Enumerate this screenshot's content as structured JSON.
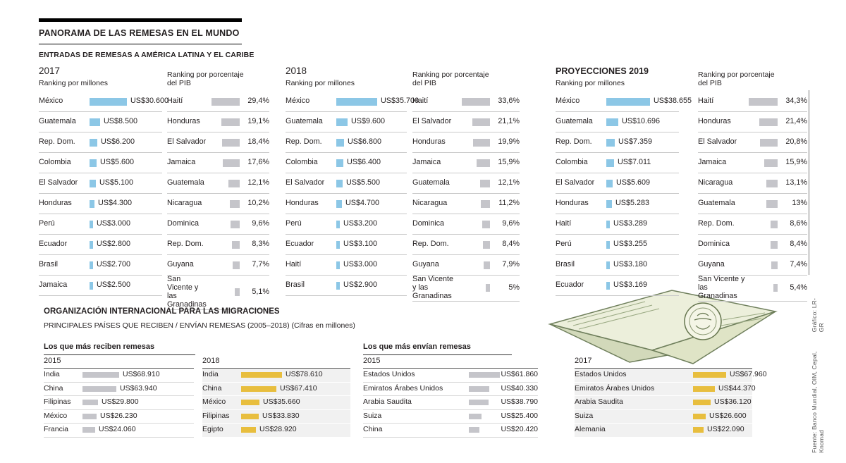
{
  "header": {
    "title": "PANORAMA DE LAS REMESAS EN EL MUNDO",
    "subtitle": "ENTRADAS DE REMESAS A AMÉRICA LATINA Y EL CARIBE"
  },
  "top": {
    "millones_label": "Ranking por millones",
    "pib_label": "Ranking por porcentaje del PIB",
    "years": [
      "2017",
      "2018",
      "PROYECCIONES 2019"
    ]
  },
  "bottom": {
    "title": "ORGANIZACIÓN INTERNACIONAL PARA LAS MIGRACIONES",
    "subtitle": "PRINCIPALES PAÍSES QUE RECIBEN / ENVÍAN REMESAS (2005–2018) (Cifras en millones)",
    "receive_title": "Los que más reciben remesas",
    "send_title": "Los que más envían remesas"
  },
  "credits": {
    "source": "Fuente: Banco Mundial, OIM, Cepal, Knomad",
    "graphic": "Gráfico: LR-GR"
  },
  "colors": {
    "blue": "#8CC7E6",
    "gray": "#C5C5CA",
    "yellow": "#E8BE3E"
  },
  "chart_data": [
    {
      "type": "bar",
      "orientation": "horizontal",
      "group": "2017",
      "title": "Ranking por millones",
      "bar_color": "#8CC7E6",
      "categories": [
        "México",
        "Guatemala",
        "Rep. Dom.",
        "Colombia",
        "El Salvador",
        "Honduras",
        "Perú",
        "Ecuador",
        "Brasil",
        "Jamaica"
      ],
      "values": [
        30600,
        8500,
        6200,
        5600,
        5100,
        4300,
        3000,
        2800,
        2700,
        2500
      ],
      "value_labels": [
        "US$30.600",
        "US$8.500",
        "US$6.200",
        "US$5.600",
        "US$5.100",
        "US$4.300",
        "US$3.000",
        "US$2.800",
        "US$2.700",
        "US$2.500"
      ]
    },
    {
      "type": "bar",
      "orientation": "horizontal",
      "group": "2017",
      "title": "Ranking por porcentaje del PIB",
      "bar_color": "#C5C5CA",
      "categories": [
        "Haití",
        "Honduras",
        "El Salvador",
        "Jamaica",
        "Guatemala",
        "Nicaragua",
        "Dominica",
        "Rep. Dom.",
        "Guyana",
        "San Vicente y las Granadinas"
      ],
      "values": [
        29.4,
        19.1,
        18.4,
        17.6,
        12.1,
        10.2,
        9.6,
        8.3,
        7.7,
        5.1
      ],
      "value_labels": [
        "29,4%",
        "19,1%",
        "18,4%",
        "17,6%",
        "12,1%",
        "10,2%",
        "9,6%",
        "8,3%",
        "7,7%",
        "5,1%"
      ]
    },
    {
      "type": "bar",
      "orientation": "horizontal",
      "group": "2018",
      "title": "Ranking por millones",
      "bar_color": "#8CC7E6",
      "categories": [
        "México",
        "Guatemala",
        "Rep. Dom.",
        "Colombia",
        "El Salvador",
        "Honduras",
        "Perú",
        "Ecuador",
        "Haití",
        "Brasil"
      ],
      "values": [
        35700,
        9600,
        6800,
        6400,
        5500,
        4700,
        3200,
        3100,
        3000,
        2900
      ],
      "value_labels": [
        "US$35.700",
        "US$9.600",
        "US$6.800",
        "US$6.400",
        "US$5.500",
        "US$4.700",
        "US$3.200",
        "US$3.100",
        "US$3.000",
        "US$2.900"
      ]
    },
    {
      "type": "bar",
      "orientation": "horizontal",
      "group": "2018",
      "title": "Ranking por porcentaje del PIB",
      "bar_color": "#C5C5CA",
      "categories": [
        "Haití",
        "El Salvador",
        "Honduras",
        "Jamaica",
        "Guatemala",
        "Nicaragua",
        "Dominica",
        "Rep. Dom.",
        "Guyana",
        "San Vicente y las Granadinas"
      ],
      "values": [
        33.6,
        21.1,
        19.9,
        15.9,
        12.1,
        11.2,
        9.6,
        8.4,
        7.9,
        5
      ],
      "value_labels": [
        "33,6%",
        "21,1%",
        "19,9%",
        "15,9%",
        "12,1%",
        "11,2%",
        "9,6%",
        "8,4%",
        "7,9%",
        "5%"
      ]
    },
    {
      "type": "bar",
      "orientation": "horizontal",
      "group": "PROYECCIONES 2019",
      "title": "Ranking por millones",
      "bar_color": "#8CC7E6",
      "categories": [
        "México",
        "Guatemala",
        "Rep. Dom.",
        "Colombia",
        "El Salvador",
        "Honduras",
        "Haití",
        "Perú",
        "Brasil",
        "Ecuador"
      ],
      "values": [
        38655,
        10696,
        7359,
        7011,
        5609,
        5283,
        3289,
        3255,
        3180,
        3169
      ],
      "value_labels": [
        "US$38.655",
        "US$10.696",
        "US$7.359",
        "US$7.011",
        "US$5.609",
        "US$5.283",
        "US$3.289",
        "US$3.255",
        "US$3.180",
        "US$3.169"
      ]
    },
    {
      "type": "bar",
      "orientation": "horizontal",
      "group": "PROYECCIONES 2019",
      "title": "Ranking por porcentaje del PIB",
      "bar_color": "#C5C5CA",
      "categories": [
        "Haití",
        "Honduras",
        "El Salvador",
        "Jamaica",
        "Nicaragua",
        "Guatemala",
        "Rep. Dom.",
        "Dominica",
        "Guyana",
        "San Vicente y las Granadinas"
      ],
      "values": [
        34.3,
        21.4,
        20.8,
        15.9,
        13.1,
        13,
        8.6,
        8.4,
        7.4,
        5.4
      ],
      "value_labels": [
        "34,3%",
        "21,4%",
        "20,8%",
        "15,9%",
        "13,1%",
        "13%",
        "8,6%",
        "8,4%",
        "7,4%",
        "5,4%"
      ]
    },
    {
      "type": "bar",
      "orientation": "horizontal",
      "group": "Los que más reciben remesas",
      "year_label": "2015",
      "title": "Los que más reciben remesas 2015",
      "bar_color": "#C5C5CA",
      "categories": [
        "India",
        "China",
        "Filipinas",
        "México",
        "Francia"
      ],
      "values": [
        68910,
        63940,
        29800,
        26230,
        24060
      ],
      "value_labels": [
        "US$68.910",
        "US$63.940",
        "US$29.800",
        "US$26.230",
        "US$24.060"
      ]
    },
    {
      "type": "bar",
      "orientation": "horizontal",
      "group": "Los que más reciben remesas",
      "year_label": "2018",
      "title": "Los que más reciben remesas 2018",
      "bar_color": "#E8BE3E",
      "categories": [
        "India",
        "China",
        "México",
        "Filipinas",
        "Egipto"
      ],
      "values": [
        78610,
        67410,
        35660,
        33830,
        28920
      ],
      "value_labels": [
        "US$78.610",
        "US$67.410",
        "US$35.660",
        "US$33.830",
        "US$28.920"
      ]
    },
    {
      "type": "bar",
      "orientation": "horizontal",
      "group": "Los que más envían remesas",
      "year_label": "2015",
      "title": "Los que más envían remesas 2015",
      "bar_color": "#C5C5CA",
      "categories": [
        "Estados Unidos",
        "Emiratos Árabes Unidos",
        "Arabia Saudita",
        "Suiza",
        "China"
      ],
      "values": [
        61860,
        40330,
        38790,
        25400,
        20420
      ],
      "value_labels": [
        "US$61.860",
        "US$40.330",
        "US$38.790",
        "US$25.400",
        "US$20.420"
      ]
    },
    {
      "type": "bar",
      "orientation": "horizontal",
      "group": "Los que más envían remesas",
      "year_label": "2017",
      "title": "Los que más envían remesas 2017",
      "bar_color": "#E8BE3E",
      "categories": [
        "Estados Unidos",
        "Emiratos Árabes Unidos",
        "Arabia Saudita",
        "Suiza",
        "Alemania"
      ],
      "values": [
        67960,
        44370,
        36120,
        26600,
        22090
      ],
      "value_labels": [
        "US$67.960",
        "US$44.370",
        "US$36.120",
        "US$26.600",
        "US$22.090"
      ]
    }
  ]
}
